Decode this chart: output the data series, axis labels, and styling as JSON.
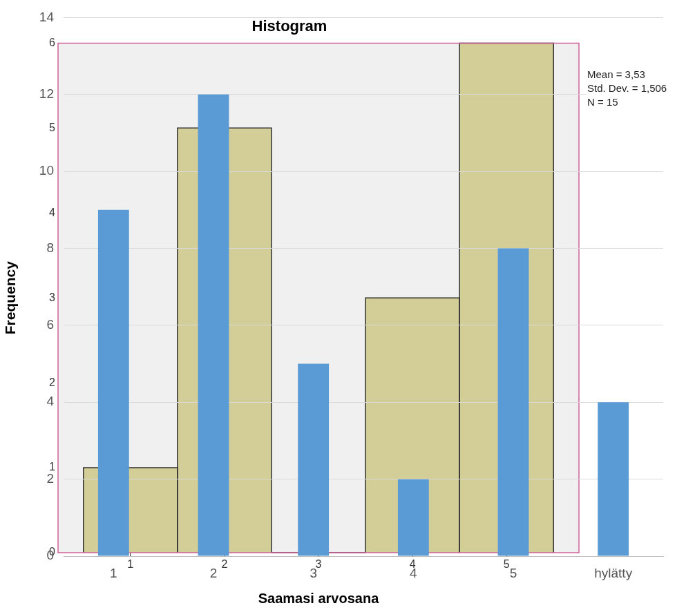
{
  "chart_data": [
    {
      "type": "histogram",
      "title": "Histogram",
      "xlabel": "Saamasi arvosana",
      "ylabel": "Frequency",
      "bins": [
        0.5,
        1.5,
        2.5,
        3.5,
        4.5,
        5.5
      ],
      "values": [
        1,
        5,
        0,
        3,
        6
      ],
      "color": "#d3ce97",
      "xlim": [
        0.23,
        5.77
      ],
      "xticks": [
        1,
        2,
        3,
        4,
        5
      ],
      "ylim": [
        0,
        6
      ],
      "yticks": [
        0,
        1,
        2,
        3,
        4,
        5,
        6
      ],
      "annotations": [
        "Mean = 3,53",
        "Std. Dev. = 1,506",
        "N = 15"
      ]
    },
    {
      "type": "bar",
      "categories": [
        "1",
        "2",
        "3",
        "4",
        "5",
        "hylätty"
      ],
      "values": [
        9,
        12,
        5,
        2,
        8,
        4
      ],
      "color": "#5b9bd5",
      "ylim": [
        0,
        14
      ],
      "yticks": [
        0,
        2,
        4,
        6,
        8,
        10,
        12,
        14
      ],
      "grid": "y"
    }
  ]
}
